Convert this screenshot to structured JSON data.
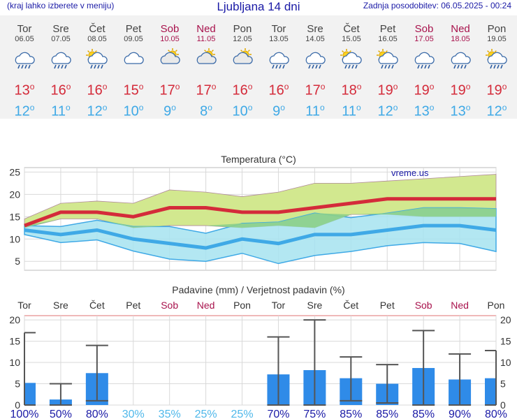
{
  "header": {
    "menu_hint": "(kraj lahko izberete v meniju)",
    "title": "Ljubljana 14 dni",
    "updated": "Zadnja posodobitev: 06.05.2025 - 00:24"
  },
  "days": [
    {
      "name": "Tor",
      "date": "06.05",
      "weekend": false,
      "icon": "rain-cloud-icon",
      "tmax": "13",
      "tmin": "12"
    },
    {
      "name": "Sre",
      "date": "07.05",
      "weekend": false,
      "icon": "rain-cloud-icon",
      "tmax": "16",
      "tmin": "11"
    },
    {
      "name": "Čet",
      "date": "08.05",
      "weekend": false,
      "icon": "sun-cloud-rain-icon",
      "tmax": "16",
      "tmin": "12"
    },
    {
      "name": "Pet",
      "date": "09.05",
      "weekend": false,
      "icon": "cloud-icon",
      "tmax": "15",
      "tmin": "10"
    },
    {
      "name": "Sob",
      "date": "10.05",
      "weekend": true,
      "icon": "sun-cloud-icon",
      "tmax": "17",
      "tmin": "9"
    },
    {
      "name": "Ned",
      "date": "11.05",
      "weekend": true,
      "icon": "sun-cloud-icon",
      "tmax": "17",
      "tmin": "8"
    },
    {
      "name": "Pon",
      "date": "12.05",
      "weekend": false,
      "icon": "sun-cloud-icon",
      "tmax": "16",
      "tmin": "10"
    },
    {
      "name": "Tor",
      "date": "13.05",
      "weekend": false,
      "icon": "rain-cloud-icon",
      "tmax": "16",
      "tmin": "9"
    },
    {
      "name": "Sre",
      "date": "14.05",
      "weekend": false,
      "icon": "rain-cloud-icon",
      "tmax": "17",
      "tmin": "11"
    },
    {
      "name": "Čet",
      "date": "15.05",
      "weekend": false,
      "icon": "sun-cloud-rain-icon",
      "tmax": "18",
      "tmin": "11"
    },
    {
      "name": "Pet",
      "date": "16.05",
      "weekend": false,
      "icon": "sun-cloud-rain-icon",
      "tmax": "19",
      "tmin": "12"
    },
    {
      "name": "Sob",
      "date": "17.05",
      "weekend": true,
      "icon": "rain-cloud-icon",
      "tmax": "19",
      "tmin": "13"
    },
    {
      "name": "Ned",
      "date": "18.05",
      "weekend": true,
      "icon": "rain-cloud-icon",
      "tmax": "19",
      "tmin": "13"
    },
    {
      "name": "Pon",
      "date": "19.05",
      "weekend": false,
      "icon": "sun-cloud-rain-icon",
      "tmax": "19",
      "tmin": "12"
    }
  ],
  "colors": {
    "tmax": "#d42b3a",
    "tmin": "#3fa9e6",
    "weekend": "#a8124c",
    "title": "#1a1aa6",
    "max_band": "#d2e88f",
    "min_band": "#a6e3f0",
    "overlap": "#8ccf8a",
    "precip_bar": "#2f8be8",
    "prob_high": "#1a1aa6",
    "prob_low": "#4fb8ea"
  },
  "chart_data": [
    {
      "type": "line",
      "title": "Temperatura (°C)",
      "watermark": "vreme.us",
      "ylim": [
        3,
        26
      ],
      "yticks": [
        5,
        10,
        15,
        20,
        25
      ],
      "x": [
        "Tor",
        "Sre",
        "Čet",
        "Pet",
        "Sob",
        "Ned",
        "Pon",
        "Tor",
        "Sre",
        "Čet",
        "Pet",
        "Sob",
        "Ned",
        "Pon"
      ],
      "series": [
        {
          "role": "max_temp",
          "values": [
            13,
            16,
            16,
            15,
            17,
            17,
            16,
            16,
            17,
            18,
            19,
            19,
            19,
            19
          ]
        },
        {
          "role": "min_temp",
          "values": [
            12,
            11,
            12,
            10,
            9,
            8,
            10,
            9,
            11,
            11,
            12,
            13,
            13,
            12
          ]
        },
        {
          "role": "max_band_upper",
          "values": [
            14.5,
            18,
            18.5,
            18,
            21,
            20.5,
            19.5,
            20.5,
            22.5,
            22.5,
            23,
            23.5,
            24,
            24.5
          ]
        },
        {
          "role": "max_band_lower",
          "values": [
            12.5,
            14.5,
            14.5,
            12.5,
            13,
            13,
            12.5,
            13,
            12.5,
            15.5,
            15.5,
            15,
            15,
            15
          ]
        },
        {
          "role": "min_band_upper",
          "values": [
            13,
            12.8,
            14.2,
            12.8,
            12.8,
            11.3,
            13.5,
            13.8,
            15.8,
            14.8,
            15.8,
            17,
            17,
            16.8
          ]
        },
        {
          "role": "min_band_lower",
          "values": [
            11,
            9.2,
            9.8,
            7.3,
            5.5,
            5,
            6.8,
            4.5,
            6.3,
            7.2,
            8.5,
            9.2,
            9,
            7.2
          ]
        }
      ],
      "grid": true
    },
    {
      "type": "bar",
      "title": "Padavine (mm) / Verjetnost padavin (%)",
      "ylim": [
        0,
        21
      ],
      "yticks": [
        0,
        5,
        10,
        15,
        20
      ],
      "categories": [
        "Tor",
        "Sre",
        "Čet",
        "Pet",
        "Sob",
        "Ned",
        "Pon",
        "Tor",
        "Sre",
        "Čet",
        "Pet",
        "Sob",
        "Ned",
        "Pon"
      ],
      "values": [
        5.2,
        1.3,
        7.5,
        0,
        0,
        0,
        0,
        7.2,
        8.2,
        6.3,
        5.0,
        8.7,
        6.0,
        6.3
      ],
      "error_high": [
        17,
        5,
        14,
        0,
        0,
        0,
        0,
        16,
        20,
        11.3,
        9.5,
        17.5,
        12,
        12.8
      ],
      "error_low": [
        0,
        0,
        1,
        0,
        0,
        0,
        0,
        0,
        0,
        1,
        0.5,
        0,
        0,
        0
      ],
      "probability": [
        "100%",
        "50%",
        "80%",
        "30%",
        "35%",
        "25%",
        "25%",
        "70%",
        "75%",
        "85%",
        "85%",
        "85%",
        "90%",
        "80%"
      ],
      "grid": true
    }
  ]
}
